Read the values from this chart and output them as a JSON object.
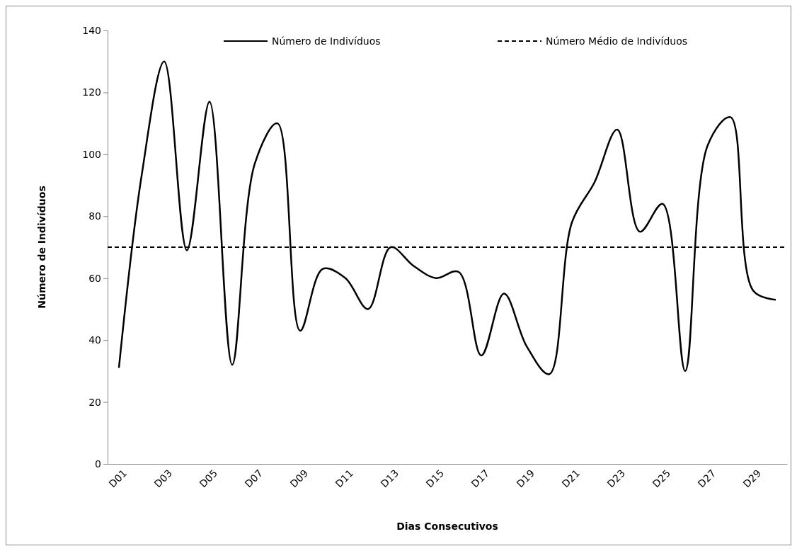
{
  "chart_data": {
    "type": "line",
    "xlabel": "Dias Consecutivos",
    "ylabel": "Número de Indivíduos",
    "categories": [
      "D01",
      null,
      "D03",
      null,
      "D05",
      null,
      "D07",
      null,
      "D09",
      null,
      "D11",
      null,
      "D13",
      null,
      "D15",
      null,
      "D17",
      null,
      "D19",
      null,
      "D21",
      null,
      "D23",
      null,
      "D25",
      null,
      "D27",
      null,
      "D29",
      null
    ],
    "series": [
      {
        "name": "Número de Indivíduos",
        "color": "#000000",
        "line_style": "solid",
        "values": [
          31,
          93,
          130,
          69,
          117,
          32,
          97,
          110,
          43,
          63,
          60,
          50,
          70,
          64,
          60,
          62,
          35,
          55,
          38,
          29,
          78,
          91,
          108,
          75,
          84,
          30,
          103,
          112,
          56,
          53
        ]
      }
    ],
    "ref_lines": [
      {
        "axis": "y",
        "value": 70,
        "label": "Número Médio de Indivíduos",
        "color": "#000000",
        "line_style": "dashed"
      }
    ],
    "ylim": [
      0,
      140
    ],
    "yticks": [
      0,
      20,
      40,
      60,
      80,
      100,
      120,
      140
    ],
    "grid": false,
    "legend": "top",
    "marker": "none"
  }
}
